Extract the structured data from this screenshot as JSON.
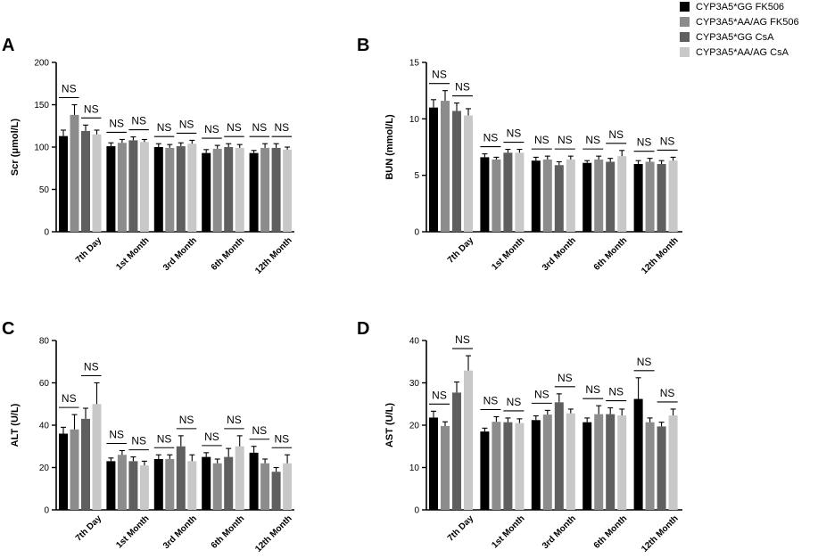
{
  "legend": [
    {
      "label": "CYP3A5*GG FK506",
      "color": "#000000"
    },
    {
      "label": "CYP3A5*AA/AG FK506",
      "color": "#8c8c8c"
    },
    {
      "label": "CYP3A5*GG CsA",
      "color": "#5f5f5f"
    },
    {
      "label": "CYP3A5*AA/AG CsA",
      "color": "#c8c8c8"
    }
  ],
  "chart_data": [
    {
      "panel": "A",
      "type": "bar",
      "ylabel": "Scr (μmol/L)",
      "ylim": [
        0,
        200
      ],
      "yticks": [
        0,
        50,
        100,
        150,
        200
      ],
      "categories": [
        "7th Day",
        "1st Month",
        "3rd Month",
        "6th Month",
        "12th Month"
      ],
      "significance": [
        "NS",
        "NS",
        "NS",
        "NS",
        "NS"
      ],
      "series": [
        {
          "name": "CYP3A5*GG FK506",
          "values": [
            113,
            101,
            100,
            93,
            93
          ],
          "errors": [
            7,
            4,
            4,
            4,
            3
          ]
        },
        {
          "name": "CYP3A5*AA/AG FK506",
          "values": [
            138,
            105,
            99,
            98,
            99
          ],
          "errors": [
            12,
            4,
            4,
            4,
            5
          ]
        },
        {
          "name": "CYP3A5*GG CsA",
          "values": [
            119,
            108,
            101,
            100,
            99
          ],
          "errors": [
            7,
            4,
            4,
            4,
            5
          ]
        },
        {
          "name": "CYP3A5*AA/AG CsA",
          "values": [
            115,
            106,
            104,
            99,
            97
          ],
          "errors": [
            5,
            3,
            4,
            4,
            3
          ]
        }
      ]
    },
    {
      "panel": "B",
      "type": "bar",
      "ylabel": "BUN (mmol/L)",
      "ylim": [
        0,
        15
      ],
      "yticks": [
        0,
        5,
        10,
        15
      ],
      "categories": [
        "7th Day",
        "1st Month",
        "3rd Month",
        "6th Month",
        "12th Month"
      ],
      "significance": [
        "NS",
        "NS",
        "NS",
        "NS",
        "NS"
      ],
      "series": [
        {
          "name": "CYP3A5*GG FK506",
          "values": [
            11.0,
            6.6,
            6.3,
            6.1,
            6.0
          ],
          "errors": [
            0.7,
            0.3,
            0.3,
            0.2,
            0.3
          ]
        },
        {
          "name": "CYP3A5*AA/AG FK506",
          "values": [
            11.6,
            6.4,
            6.4,
            6.4,
            6.2
          ],
          "errors": [
            0.9,
            0.2,
            0.3,
            0.3,
            0.3
          ]
        },
        {
          "name": "CYP3A5*GG CsA",
          "values": [
            10.7,
            7.0,
            5.9,
            6.2,
            6.0
          ],
          "errors": [
            0.7,
            0.3,
            0.3,
            0.3,
            0.3
          ]
        },
        {
          "name": "CYP3A5*AA/AG CsA",
          "values": [
            10.3,
            7.0,
            6.4,
            6.7,
            6.3
          ],
          "errors": [
            0.6,
            0.3,
            0.3,
            0.5,
            0.3
          ]
        }
      ]
    },
    {
      "panel": "C",
      "type": "bar",
      "ylabel": "ALT (U/L)",
      "ylim": [
        0,
        80
      ],
      "yticks": [
        0,
        20,
        40,
        60,
        80
      ],
      "categories": [
        "7th Day",
        "1st Month",
        "3rd Month",
        "6th Month",
        "12th Month"
      ],
      "significance": [
        "NS",
        "NS",
        "NS",
        "NS",
        "NS"
      ],
      "series": [
        {
          "name": "CYP3A5*GG FK506",
          "values": [
            36,
            23,
            24,
            25,
            27
          ],
          "errors": [
            3,
            1.5,
            2,
            2,
            3
          ]
        },
        {
          "name": "CYP3A5*AA/AG FK506",
          "values": [
            38,
            26,
            24,
            22,
            22
          ],
          "errors": [
            7,
            2,
            2,
            2,
            2
          ]
        },
        {
          "name": "CYP3A5*GG CsA",
          "values": [
            43,
            23,
            30,
            25,
            18
          ],
          "errors": [
            5,
            2,
            5,
            4,
            2
          ]
        },
        {
          "name": "CYP3A5*AA/AG CsA",
          "values": [
            50,
            21,
            23,
            30,
            22
          ],
          "errors": [
            10,
            2,
            3,
            5,
            4
          ]
        }
      ]
    },
    {
      "panel": "D",
      "type": "bar",
      "ylabel": "AST (U/L)",
      "ylim": [
        0,
        40
      ],
      "yticks": [
        0,
        10,
        20,
        30,
        40
      ],
      "categories": [
        "7th Day",
        "1st Month",
        "3rd Month",
        "6th Month",
        "12th Month"
      ],
      "significance": [
        "NS",
        "NS",
        "NS",
        "NS",
        "NS"
      ],
      "series": [
        {
          "name": "CYP3A5*GG FK506",
          "values": [
            21.8,
            18.5,
            21.2,
            20.7,
            26.2
          ],
          "errors": [
            1.5,
            0.8,
            1,
            1,
            5
          ]
        },
        {
          "name": "CYP3A5*AA/AG FK506",
          "values": [
            19.8,
            20.8,
            22.5,
            22.6,
            20.7
          ],
          "errors": [
            1,
            1.2,
            1,
            2,
            1
          ]
        },
        {
          "name": "CYP3A5*GG CsA",
          "values": [
            27.7,
            20.7,
            25.4,
            22.6,
            19.7
          ],
          "errors": [
            2.5,
            1,
            2,
            1.5,
            1
          ]
        },
        {
          "name": "CYP3A5*AA/AG CsA",
          "values": [
            32.9,
            20.5,
            22.8,
            22.3,
            22.3
          ],
          "errors": [
            3.5,
            1,
            1,
            1.5,
            1.5
          ]
        }
      ]
    }
  ]
}
